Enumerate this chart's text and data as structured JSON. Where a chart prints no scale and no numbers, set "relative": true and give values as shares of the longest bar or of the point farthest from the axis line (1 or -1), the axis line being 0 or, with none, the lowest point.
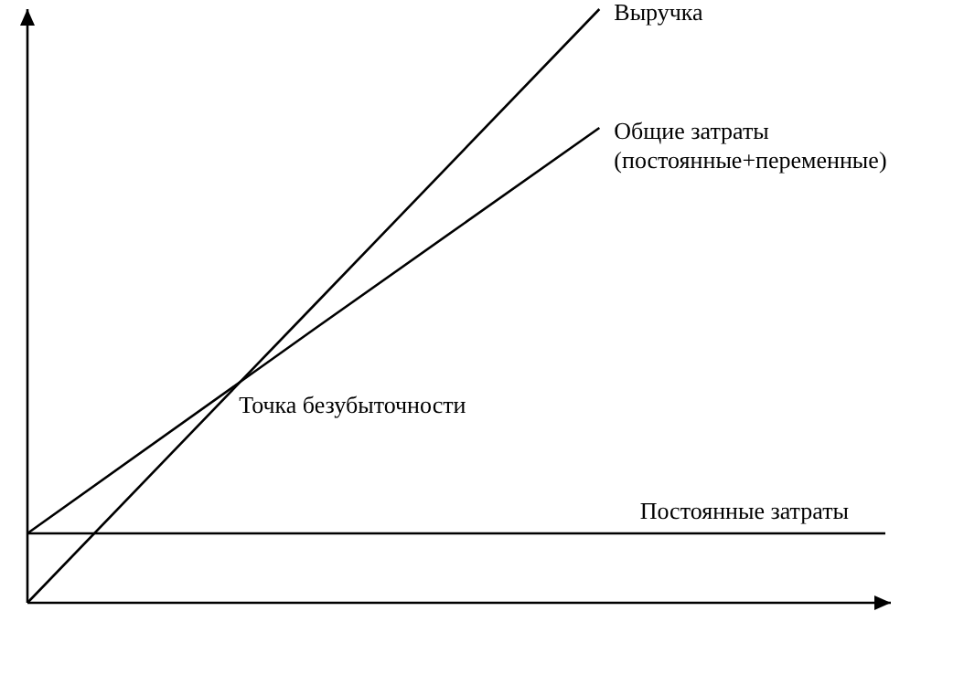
{
  "chart_data": {
    "type": "line",
    "relative": true,
    "categories": [
      null,
      null,
      null,
      null
    ],
    "line_style": "solid",
    "series": [
      {
        "name": "Выручка",
        "color": "#000000",
        "values": [
          0,
          0.5,
          1,
          null
        ]
      },
      {
        "name": "Общие затраты\n(постоянные+переменные)",
        "color": "#000000",
        "values": [
          0.117,
          0.46,
          0.8,
          null
        ]
      },
      {
        "name": "Постоянные затраты",
        "color": "#000000",
        "values": [
          0.117,
          0.117,
          0.117,
          0.117
        ]
      }
    ],
    "annotations": [
      "Точка безубыточности"
    ]
  }
}
